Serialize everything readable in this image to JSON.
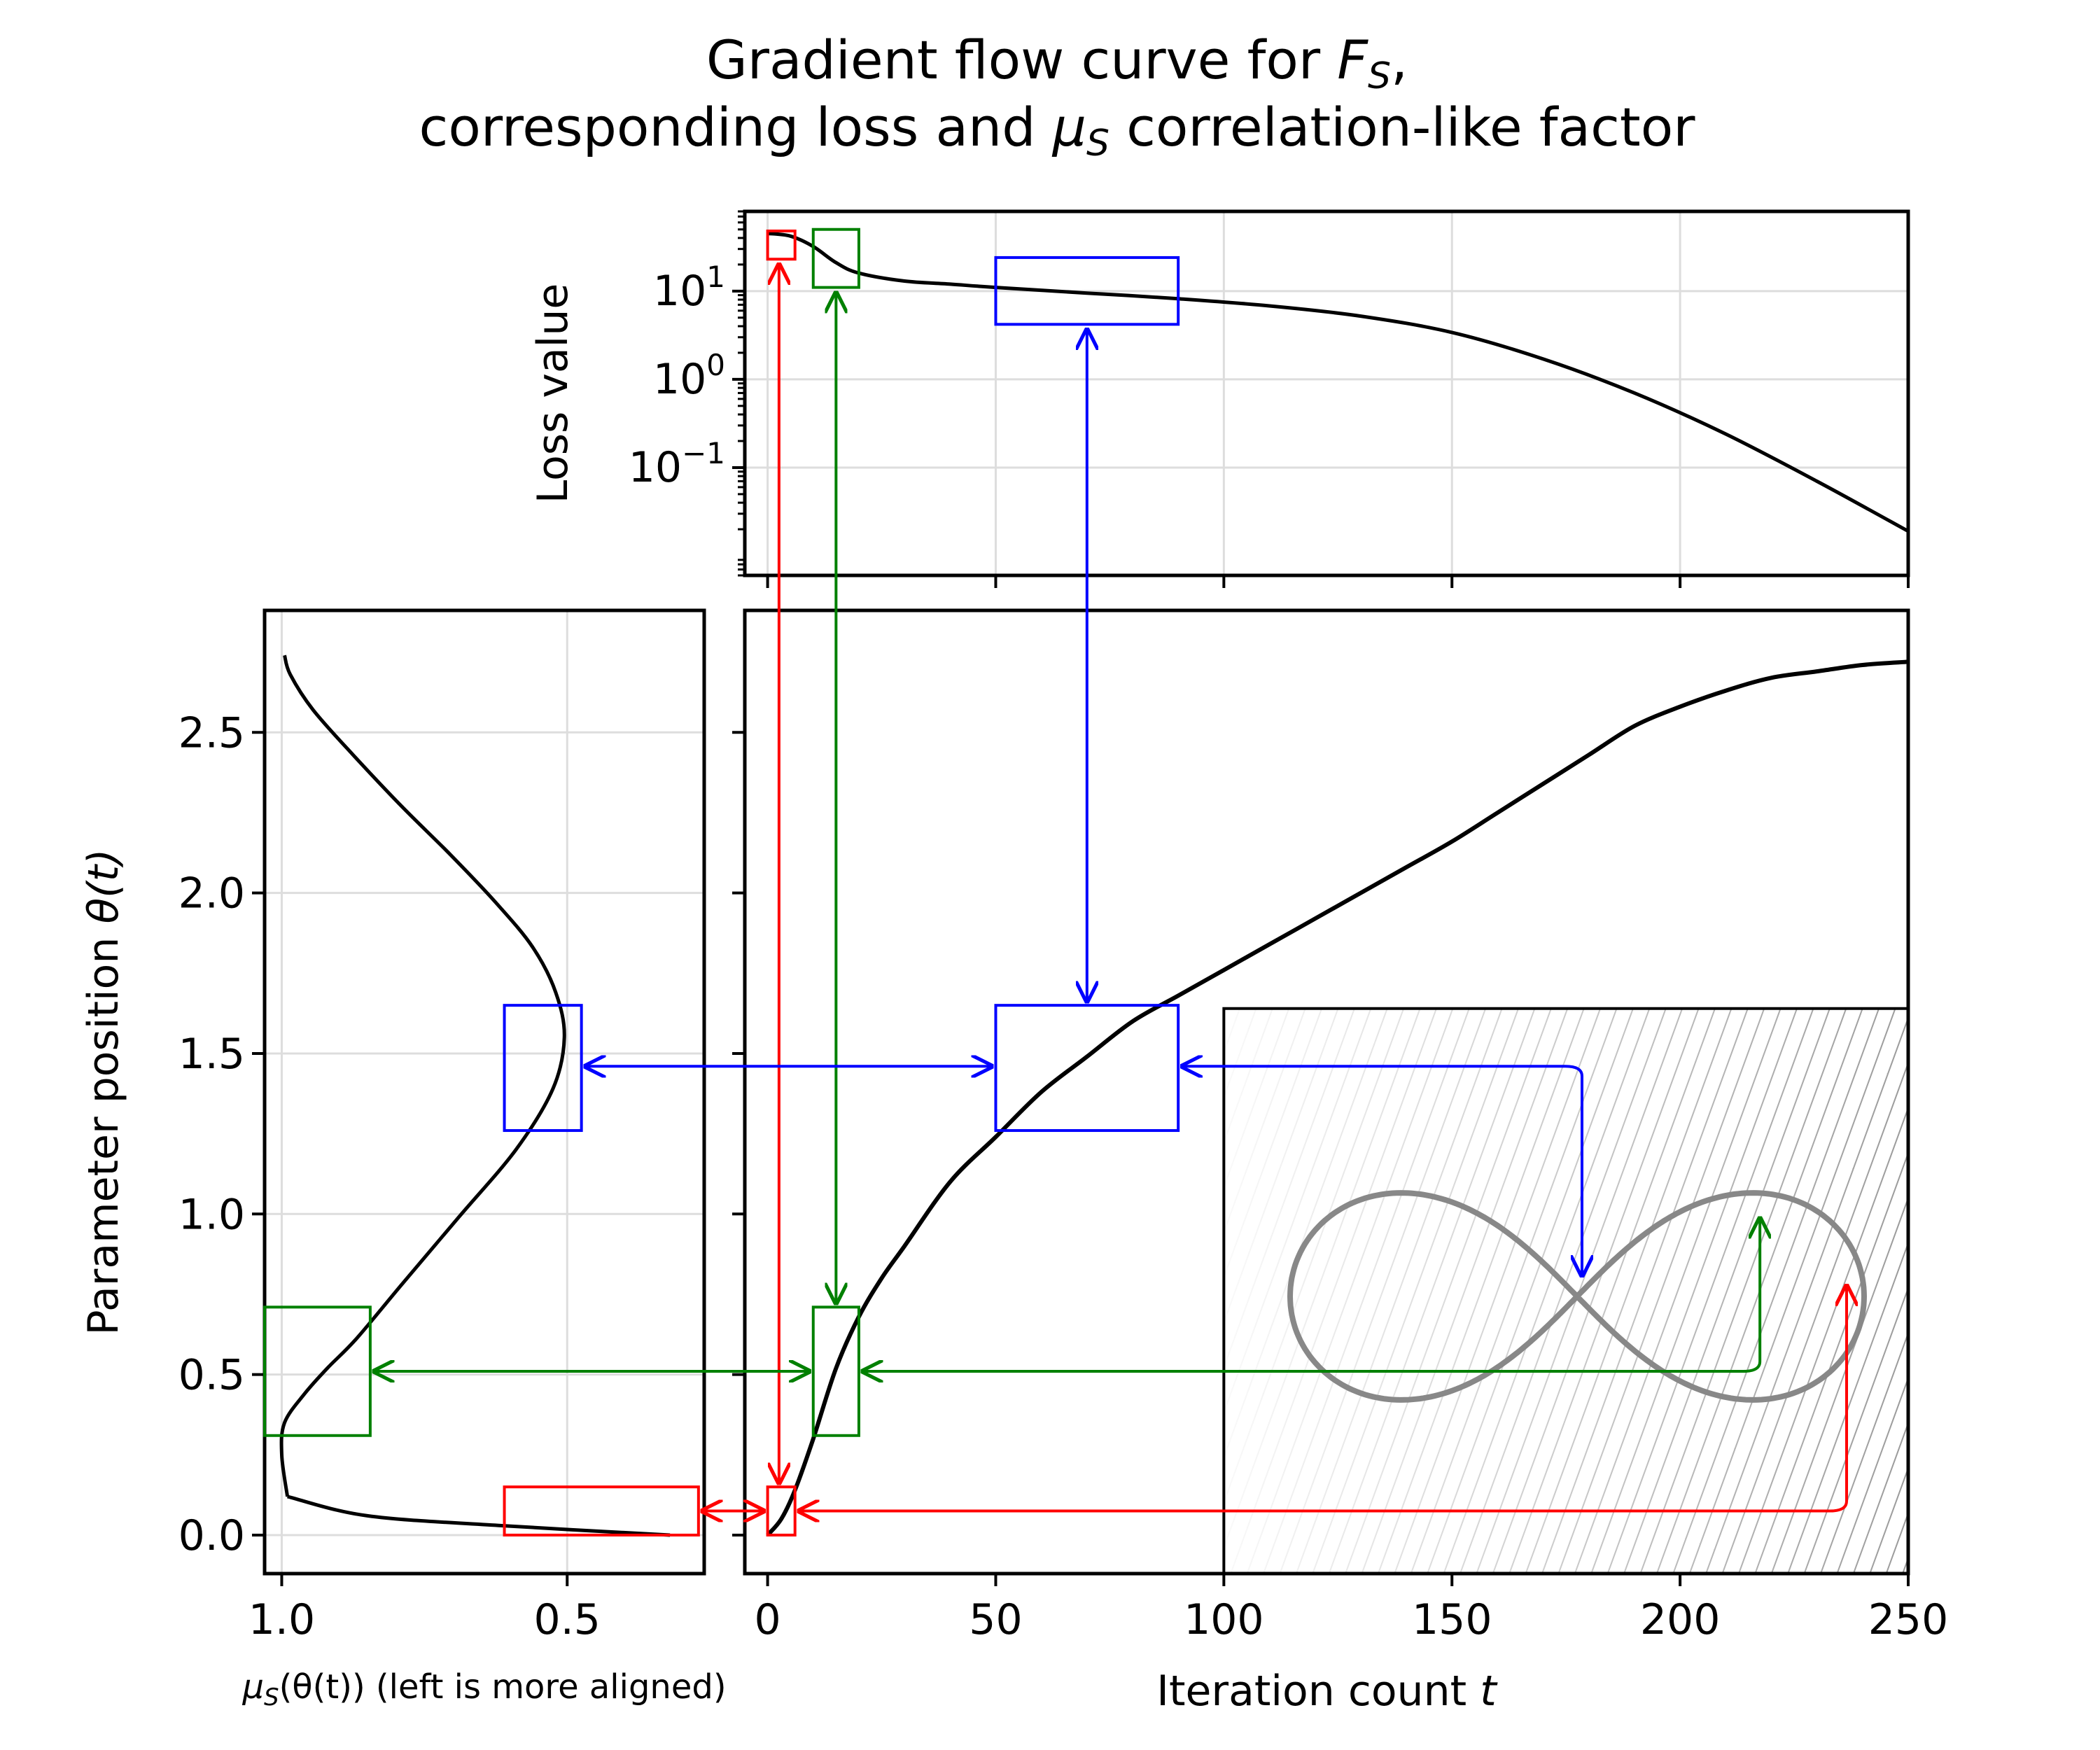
{
  "title": {
    "line1_prefix": "Gradient flow curve for ",
    "line1_sym": "F",
    "line1_sub": "S",
    "line1_suffix": ",",
    "line2_prefix": "corresponding loss and ",
    "line2_sym": "μ",
    "line2_sub": "S",
    "line2_suffix": " correlation-like factor"
  },
  "chart_data": [
    {
      "id": "loss",
      "type": "line",
      "ylabel": "Loss value",
      "yscale": "log",
      "xlim": [
        -5,
        250
      ],
      "ylim": [
        0.006,
        80
      ],
      "ytick_labels": [
        {
          "value": 10,
          "base": "10",
          "exp": "1"
        },
        {
          "value": 1,
          "base": "10",
          "exp": "0"
        },
        {
          "value": 0.1,
          "base": "10",
          "exp": "−1"
        }
      ],
      "grid": true,
      "series": [
        {
          "color": "#000000",
          "x": [
            0,
            5,
            10,
            15,
            20,
            30,
            40,
            50,
            70,
            90,
            110,
            130,
            150,
            170,
            190,
            210,
            230,
            250
          ],
          "y": [
            45,
            42,
            32,
            21,
            16,
            13,
            12,
            11,
            9.5,
            8.2,
            6.8,
            5.2,
            3.4,
            1.7,
            0.7,
            0.24,
            0.07,
            0.019
          ]
        }
      ]
    },
    {
      "id": "main",
      "type": "line",
      "xlabel_prefix": "Iteration count ",
      "xlabel_var": "t",
      "xlim": [
        -5,
        250
      ],
      "ylim": [
        -0.12,
        2.88
      ],
      "xticks": [
        0,
        50,
        100,
        150,
        200,
        250
      ],
      "grid": false,
      "series": [
        {
          "color": "#000000",
          "x": [
            0,
            3,
            6,
            10,
            15,
            20,
            25,
            30,
            40,
            50,
            60,
            70,
            80,
            90,
            100,
            110,
            120,
            130,
            140,
            150,
            160,
            170,
            180,
            190,
            200,
            210,
            220,
            230,
            240,
            250
          ],
          "y": [
            0.0,
            0.05,
            0.14,
            0.3,
            0.52,
            0.68,
            0.8,
            0.9,
            1.1,
            1.24,
            1.38,
            1.49,
            1.6,
            1.68,
            1.76,
            1.84,
            1.92,
            2.0,
            2.08,
            2.16,
            2.25,
            2.34,
            2.43,
            2.52,
            2.58,
            2.63,
            2.67,
            2.69,
            2.71,
            2.72
          ]
        }
      ]
    },
    {
      "id": "mu",
      "type": "line",
      "ylabel_prefix": "Parameter position ",
      "ylabel_var": "θ(t)",
      "xlabel_sym": "μ",
      "xlabel_sub": "S",
      "xlabel_rest": "(θ(t)) (left is more aligned)",
      "xlim": [
        1.03,
        0.26
      ],
      "xaxis_inverted": true,
      "ylim": [
        -0.12,
        2.88
      ],
      "xticks": [
        1.0,
        0.5
      ],
      "yticks": [
        0.0,
        0.5,
        1.0,
        1.5,
        2.0,
        2.5
      ],
      "grid": true,
      "series": [
        {
          "color": "#000000",
          "x": [
            0.995,
            0.985,
            0.945,
            0.875,
            0.79,
            0.705,
            0.625,
            0.56,
            0.52,
            0.505,
            0.525,
            0.59,
            0.69,
            0.79,
            0.87,
            0.92,
            0.96,
            0.995,
            1.0,
            0.99
          ],
          "y": [
            2.74,
            2.68,
            2.57,
            2.43,
            2.27,
            2.12,
            1.97,
            1.83,
            1.69,
            1.55,
            1.39,
            1.2,
            0.99,
            0.78,
            0.61,
            0.52,
            0.44,
            0.35,
            0.25,
            0.12
          ]
        }
      ]
    }
  ],
  "inset": {
    "curve": "lemniscate",
    "curve_color": "#888888"
  },
  "colors": {
    "red": "#ff0000",
    "green": "#008000",
    "blue": "#0000ff"
  }
}
